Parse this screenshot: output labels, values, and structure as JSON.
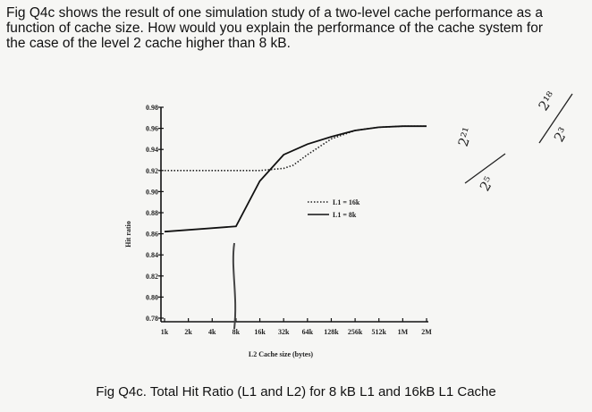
{
  "question_text": "Fig Q4c shows the result of one simulation study of a two-level cache performance as a function of cache size. How would you explain the performance of the cache system for the case of the level 2 cache higher than 8 kB.",
  "caption": "Fig Q4c. Total Hit Ratio (L1 and L2) for 8 kB L1 and 16kB L1 Cache",
  "handwritten": [
    "2²¹",
    "2⁵",
    "2¹⁸",
    "2³"
  ],
  "chart_data": {
    "type": "line",
    "xlabel": "L2 Cache size (bytes)",
    "ylabel": "Hit ratio",
    "categories": [
      "1k",
      "2k",
      "4k",
      "8k",
      "16k",
      "32k",
      "64k",
      "128k",
      "256k",
      "512k",
      "1M",
      "2M"
    ],
    "ylim": [
      0.78,
      0.98
    ],
    "yticks": [
      "0.98",
      "0.96",
      "0.94",
      "0.92",
      "0.90",
      "0.88",
      "0.86",
      "0.84",
      "0.82",
      "0.80",
      "0.78"
    ],
    "series": [
      {
        "name": "L1 = 16k",
        "style": "dotted",
        "color": "#222222",
        "points": [
          [
            1,
            0.92
          ],
          [
            2,
            0.92
          ],
          [
            3,
            0.92
          ],
          [
            4,
            0.92
          ],
          [
            5,
            0.92
          ],
          [
            6,
            0.922
          ],
          [
            6.4,
            0.925
          ],
          [
            7,
            0.935
          ],
          [
            8,
            0.95
          ],
          [
            9,
            0.958
          ],
          [
            10,
            0.961
          ],
          [
            11,
            0.962
          ],
          [
            12,
            0.962
          ]
        ]
      },
      {
        "name": "L1 = 8k",
        "style": "solid",
        "color": "#111111",
        "points": [
          [
            1,
            0.862
          ],
          [
            4,
            0.867
          ],
          [
            5,
            0.91
          ],
          [
            6,
            0.935
          ],
          [
            7,
            0.945
          ],
          [
            8,
            0.952
          ],
          [
            9,
            0.958
          ],
          [
            10,
            0.961
          ],
          [
            11,
            0.962
          ],
          [
            12,
            0.962
          ]
        ]
      }
    ],
    "legend_position": "center-right"
  }
}
